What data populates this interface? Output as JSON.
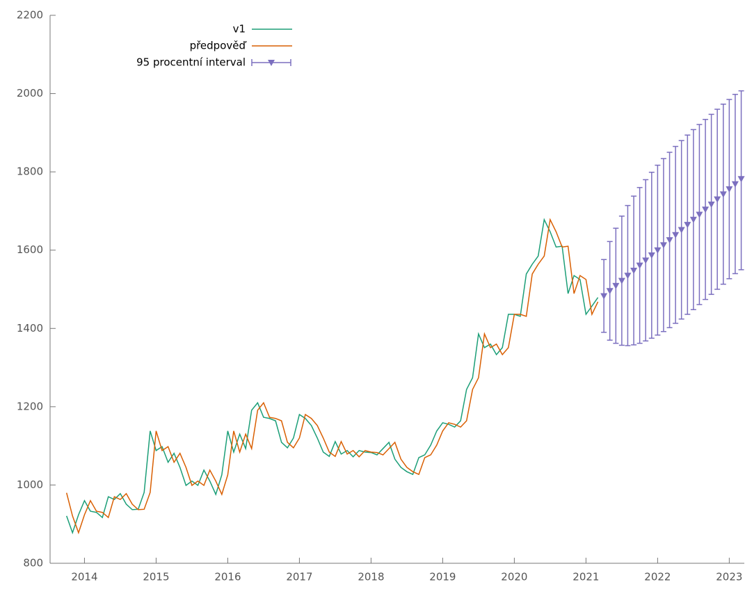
{
  "chart_data": {
    "type": "line",
    "xlim": [
      2013.52,
      2023.21
    ],
    "xticks": [
      2014,
      2015,
      2016,
      2017,
      2018,
      2019,
      2020,
      2021,
      2022,
      2023
    ],
    "ylim": [
      800,
      2200
    ],
    "yticks": [
      800,
      1000,
      1200,
      1400,
      1600,
      1800,
      2000,
      2200
    ],
    "grid": false,
    "legend": "top-left",
    "x": [
      2013.75,
      2013.833,
      2013.917,
      2014,
      2014.083,
      2014.167,
      2014.25,
      2014.333,
      2014.417,
      2014.5,
      2014.583,
      2014.667,
      2014.75,
      2014.833,
      2014.917,
      2015,
      2015.083,
      2015.167,
      2015.25,
      2015.333,
      2015.417,
      2015.5,
      2015.583,
      2015.667,
      2015.75,
      2015.833,
      2015.917,
      2016,
      2016.083,
      2016.167,
      2016.25,
      2016.333,
      2016.417,
      2016.5,
      2016.583,
      2016.667,
      2016.75,
      2016.833,
      2016.917,
      2017,
      2017.083,
      2017.167,
      2017.25,
      2017.333,
      2017.417,
      2017.5,
      2017.583,
      2017.667,
      2017.75,
      2017.833,
      2017.917,
      2018,
      2018.083,
      2018.167,
      2018.25,
      2018.333,
      2018.417,
      2018.5,
      2018.583,
      2018.667,
      2018.75,
      2018.833,
      2018.917,
      2019,
      2019.083,
      2019.167,
      2019.25,
      2019.333,
      2019.417,
      2019.5,
      2019.583,
      2019.667,
      2019.75,
      2019.833,
      2019.917,
      2020,
      2020.083,
      2020.167,
      2020.25,
      2020.333,
      2020.417,
      2020.5,
      2020.583,
      2020.667,
      2020.75,
      2020.833,
      2020.917,
      2021,
      2021.083,
      2021.167
    ],
    "series": [
      {
        "name": "v1",
        "color": "#1b9e77",
        "values": [
          921,
          878,
          924,
          960,
          933,
          930,
          917,
          970,
          963,
          978,
          951,
          937,
          938,
          981,
          1138,
          1088,
          1098,
          1058,
          1081,
          1045,
          999,
          1010,
          999,
          1038,
          1010,
          976,
          1026,
          1138,
          1084,
          1130,
          1093,
          1191,
          1210,
          1173,
          1170,
          1164,
          1109,
          1095,
          1120,
          1180,
          1170,
          1152,
          1120,
          1084,
          1073,
          1111,
          1079,
          1088,
          1072,
          1088,
          1084,
          1083,
          1077,
          1093,
          1109,
          1066,
          1045,
          1034,
          1027,
          1070,
          1077,
          1102,
          1138,
          1159,
          1155,
          1148,
          1164,
          1244,
          1274,
          1386,
          1351,
          1360,
          1333,
          1351,
          1436,
          1436,
          1431,
          1539,
          1564,
          1585,
          1678,
          1647,
          1608,
          1610,
          1489,
          1535,
          1525,
          1436,
          1457,
          1479
        ]
      },
      {
        "name": "předpověď",
        "color": "#d95f02",
        "values": [
          980,
          921,
          878,
          924,
          960,
          933,
          930,
          917,
          970,
          963,
          978,
          951,
          937,
          938,
          981,
          1138,
          1088,
          1098,
          1058,
          1081,
          1045,
          999,
          1010,
          999,
          1038,
          1010,
          976,
          1026,
          1138,
          1084,
          1130,
          1093,
          1191,
          1210,
          1173,
          1170,
          1164,
          1109,
          1095,
          1120,
          1180,
          1170,
          1152,
          1120,
          1084,
          1073,
          1111,
          1079,
          1088,
          1072,
          1088,
          1084,
          1083,
          1077,
          1093,
          1109,
          1066,
          1045,
          1034,
          1027,
          1070,
          1077,
          1102,
          1138,
          1159,
          1155,
          1148,
          1164,
          1244,
          1274,
          1386,
          1351,
          1360,
          1333,
          1351,
          1436,
          1436,
          1431,
          1539,
          1564,
          1585,
          1678,
          1647,
          1608,
          1610,
          1489,
          1535,
          1525,
          1436,
          1468
        ]
      },
      {
        "name": "95 procentní interval",
        "color": "#7b6fbf",
        "x": [
          2021.25,
          2021.333,
          2021.417,
          2021.5,
          2021.583,
          2021.667,
          2021.75,
          2021.833,
          2021.917,
          2022,
          2022.083,
          2022.167,
          2022.25,
          2022.333,
          2022.417,
          2022.5,
          2022.583,
          2022.667,
          2022.75,
          2022.833,
          2022.917,
          2023,
          2023.083,
          2023.167
        ],
        "values": [
          1483,
          1496,
          1509,
          1522,
          1535,
          1548,
          1561,
          1574,
          1587,
          1600,
          1613,
          1626,
          1639,
          1652,
          1665,
          1678,
          1691,
          1704,
          1717,
          1730,
          1743,
          1756,
          1769,
          1782
        ],
        "lower": [
          1390,
          1370,
          1362,
          1357,
          1356,
          1358,
          1362,
          1368,
          1375,
          1383,
          1392,
          1402,
          1413,
          1424,
          1436,
          1448,
          1461,
          1474,
          1487,
          1500,
          1513,
          1527,
          1540,
          1550
        ],
        "upper": [
          1576,
          1622,
          1656,
          1687,
          1714,
          1738,
          1760,
          1780,
          1799,
          1817,
          1834,
          1850,
          1865,
          1880,
          1894,
          1908,
          1921,
          1934,
          1947,
          1960,
          1973,
          1985,
          1998,
          2007
        ]
      }
    ]
  }
}
